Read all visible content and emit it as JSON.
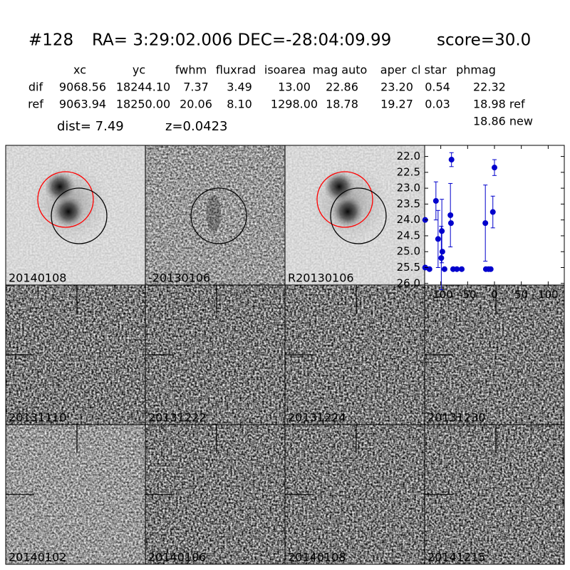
{
  "header": {
    "id": "#128",
    "coords": "RA= 3:29:02.006 DEC=-28:04:09.99",
    "score": "score=30.0"
  },
  "table": {
    "columns": [
      "xc",
      "yc",
      "fwhm",
      "fluxrad",
      "isoarea",
      "mag auto",
      "aper",
      "cl star",
      "phmag"
    ],
    "rows": [
      [
        "dif",
        "9068.56",
        "18244.10",
        "7.37",
        "3.49",
        "13.00",
        "22.86",
        "23.20",
        "0.54",
        "22.32"
      ],
      [
        "ref",
        "9063.94",
        "18250.00",
        "20.06",
        "8.10",
        "1298.00",
        "18.78",
        "19.27",
        "0.03",
        "18.98 ref"
      ]
    ],
    "extra": "18.86 new"
  },
  "dist": "dist=  7.49",
  "z": "z=0.0423",
  "panels": [
    {
      "label": "20140108"
    },
    {
      "label": "-20130106"
    },
    {
      "label": "R20130106"
    },
    {
      "label": "20131110"
    },
    {
      "label": "20131222"
    },
    {
      "label": "20131224"
    },
    {
      "label": "20131230"
    },
    {
      "label": "20140102"
    },
    {
      "label": "20140106"
    },
    {
      "label": "20140108",
      "color": "#ff0000"
    },
    {
      "label": "20141215"
    }
  ],
  "chart_data": {
    "type": "scatter",
    "color": "#0000cc",
    "x": [
      -129,
      -129,
      -121,
      -109,
      -105,
      -99,
      -98,
      -97,
      -93,
      -82,
      -81,
      -80,
      -77,
      -70,
      -61,
      -17,
      -16,
      -11,
      -7,
      -3,
      0
    ],
    "values": [
      24.0,
      25.5,
      25.55,
      23.4,
      24.6,
      25.2,
      24.35,
      25.0,
      25.55,
      23.85,
      24.1,
      22.1,
      25.55,
      25.55,
      25.55,
      24.1,
      25.55,
      25.55,
      25.55,
      23.75,
      22.35
    ],
    "errors": [
      null,
      null,
      null,
      0.6,
      0.9,
      1.0,
      1.0,
      null,
      null,
      1.0,
      null,
      0.22,
      null,
      null,
      null,
      1.2,
      null,
      null,
      null,
      0.5,
      0.25
    ],
    "xlim": [
      -130,
      130
    ],
    "ylim": [
      26.05,
      21.65
    ],
    "xticks": [
      -100,
      -50,
      0,
      50,
      100
    ],
    "yticks": [
      {
        "value": 22,
        "label": "22.0"
      },
      22.5,
      {
        "value": 23,
        "label": "23.0"
      },
      23.5,
      {
        "value": 24,
        "label": "24.0"
      },
      24.5,
      {
        "value": 25,
        "label": "25.0"
      },
      25.5,
      {
        "value": 26,
        "label": "26.0"
      }
    ]
  }
}
